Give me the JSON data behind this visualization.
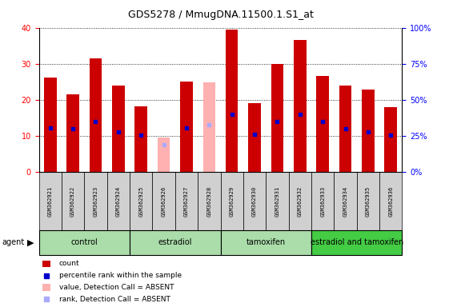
{
  "title": "GDS5278 / MmugDNA.11500.1.S1_at",
  "samples": [
    "GSM362921",
    "GSM362922",
    "GSM362923",
    "GSM362924",
    "GSM362925",
    "GSM362926",
    "GSM362927",
    "GSM362928",
    "GSM362929",
    "GSM362930",
    "GSM362931",
    "GSM362932",
    "GSM362933",
    "GSM362934",
    "GSM362935",
    "GSM362936"
  ],
  "count_values": [
    26.2,
    21.5,
    31.5,
    24.0,
    18.2,
    null,
    25.0,
    null,
    39.5,
    19.0,
    30.0,
    36.5,
    26.5,
    24.0,
    22.8,
    18.0
  ],
  "rank_values": [
    12.2,
    12.0,
    14.0,
    11.0,
    10.2,
    null,
    12.2,
    null,
    16.0,
    10.5,
    14.0,
    16.0,
    14.0,
    12.0,
    11.0,
    10.2
  ],
  "absent_count": [
    null,
    null,
    null,
    null,
    null,
    9.5,
    null,
    24.8,
    null,
    null,
    null,
    null,
    null,
    null,
    null,
    null
  ],
  "absent_rank": [
    null,
    null,
    null,
    null,
    null,
    7.5,
    null,
    13.0,
    null,
    null,
    null,
    null,
    null,
    null,
    null,
    null
  ],
  "groups": [
    {
      "label": "control",
      "start": 0,
      "end": 4,
      "color": "#aaddaa"
    },
    {
      "label": "estradiol",
      "start": 4,
      "end": 8,
      "color": "#aaddaa"
    },
    {
      "label": "tamoxifen",
      "start": 8,
      "end": 12,
      "color": "#aaddaa"
    },
    {
      "label": "estradiol and tamoxifen",
      "start": 12,
      "end": 16,
      "color": "#44cc44"
    }
  ],
  "ylim_left": [
    0,
    40
  ],
  "ylim_right": [
    0,
    100
  ],
  "yticks_left": [
    0,
    10,
    20,
    30,
    40
  ],
  "yticks_right": [
    0,
    25,
    50,
    75,
    100
  ],
  "bar_color_red": "#cc0000",
  "bar_color_pink": "#ffb0b0",
  "dot_color_blue": "#0000cc",
  "dot_color_lightblue": "#aaaaff",
  "sample_box_color": "#d0d0d0",
  "bar_width": 0.55
}
